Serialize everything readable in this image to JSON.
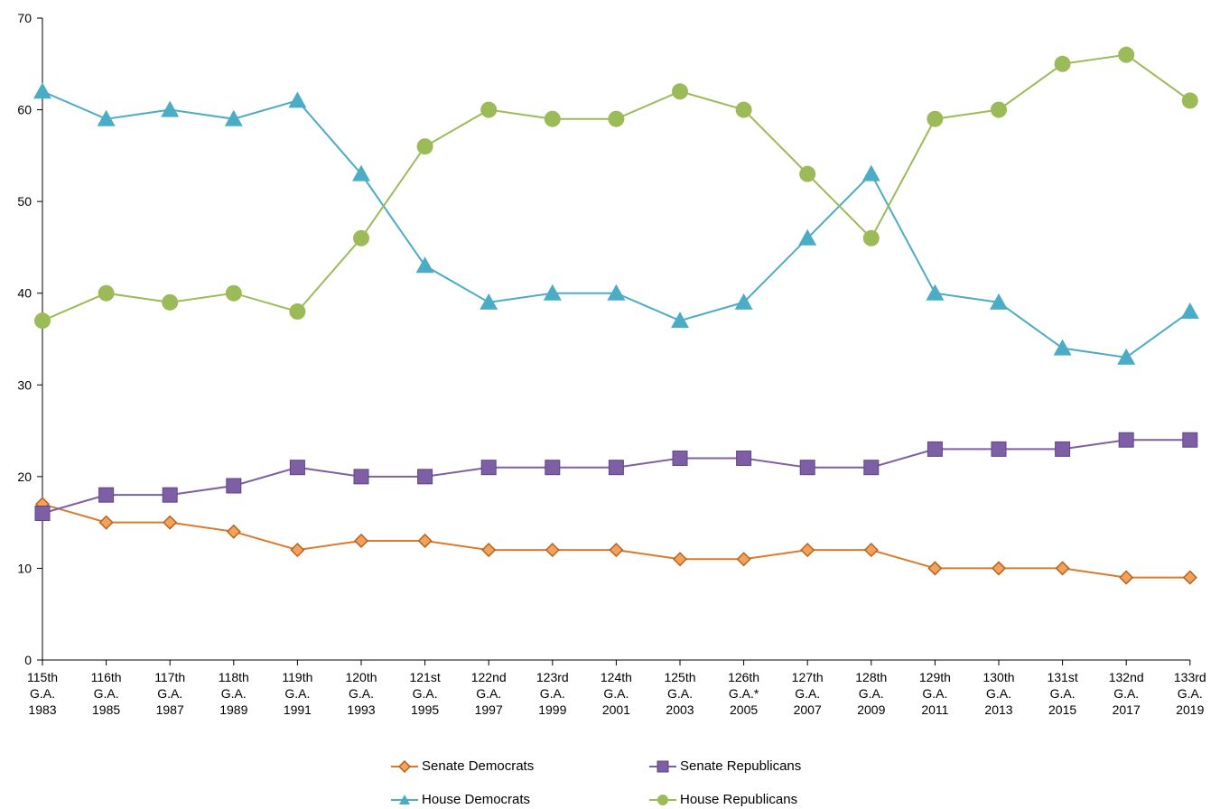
{
  "chart_data": {
    "type": "line",
    "title": "",
    "xlabel": "",
    "ylabel": "",
    "ylim": [
      0,
      70
    ],
    "yticks": [
      0,
      10,
      20,
      30,
      40,
      50,
      60,
      70
    ],
    "grid": false,
    "legend_position": "bottom",
    "categories": [
      [
        "115th",
        "G.A.",
        "1983"
      ],
      [
        "116th",
        "G.A.",
        "1985"
      ],
      [
        "117th",
        "G.A.",
        "1987"
      ],
      [
        "118th",
        "G.A.",
        "1989"
      ],
      [
        "119th",
        "G.A.",
        "1991"
      ],
      [
        "120th",
        "G.A.",
        "1993"
      ],
      [
        "121st",
        "G.A.",
        "1995"
      ],
      [
        "122nd",
        "G.A.",
        "1997"
      ],
      [
        "123rd",
        "G.A.",
        "1999"
      ],
      [
        "124th",
        "G.A.",
        "2001"
      ],
      [
        "125th",
        "G.A.",
        "2003"
      ],
      [
        "126th",
        "G.A.*",
        "2005"
      ],
      [
        "127th",
        "G.A.",
        "2007"
      ],
      [
        "128th",
        "G.A.",
        "2009"
      ],
      [
        "129th",
        "G.A.",
        "2011"
      ],
      [
        "130th",
        "G.A.",
        "2013"
      ],
      [
        "131st",
        "G.A.",
        "2015"
      ],
      [
        "132nd",
        "G.A.",
        "2017"
      ],
      [
        "133rd",
        "G.A.",
        "2019"
      ]
    ],
    "series": [
      {
        "name": "Senate Democrats",
        "color": "#D97B2B",
        "marker": "diamond",
        "values": [
          17,
          15,
          15,
          14,
          12,
          13,
          13,
          12,
          12,
          12,
          11,
          11,
          12,
          12,
          10,
          10,
          10,
          9,
          9
        ]
      },
      {
        "name": "Senate Republicans",
        "color": "#7E5FA6",
        "marker": "square",
        "values": [
          16,
          18,
          18,
          19,
          21,
          20,
          20,
          21,
          21,
          21,
          22,
          22,
          21,
          21,
          23,
          23,
          23,
          24,
          24
        ]
      },
      {
        "name": "House Democrats",
        "color": "#4BACC6",
        "marker": "triangle",
        "values": [
          62,
          59,
          60,
          59,
          61,
          53,
          43,
          39,
          40,
          40,
          37,
          39,
          46,
          53,
          40,
          39,
          34,
          33,
          38
        ]
      },
      {
        "name": "House Republicans",
        "color": "#9BBB59",
        "marker": "circle",
        "values": [
          37,
          40,
          39,
          40,
          38,
          46,
          56,
          60,
          59,
          59,
          62,
          60,
          53,
          46,
          59,
          60,
          65,
          66,
          61
        ]
      }
    ]
  }
}
